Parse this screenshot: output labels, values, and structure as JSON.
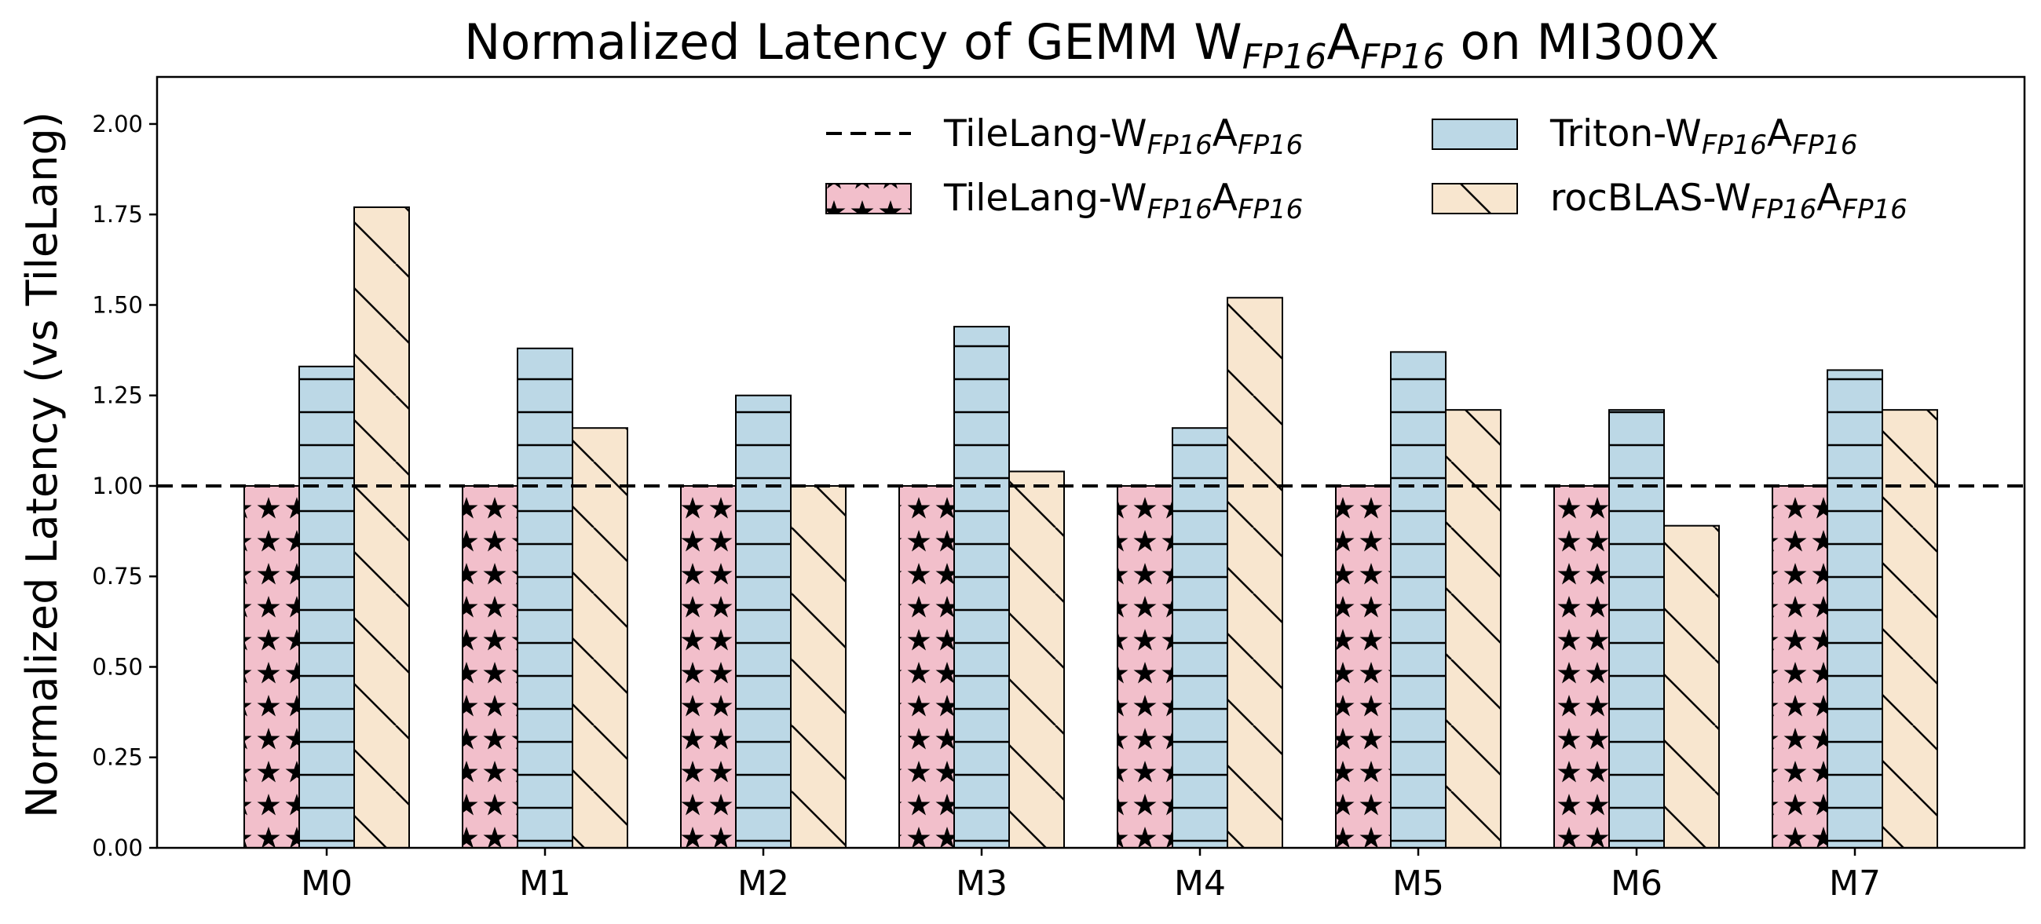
{
  "chart_data": {
    "type": "bar",
    "title": {
      "prefix": "Normalized Latency of GEMM W",
      "sub1": "FP16",
      "mid": "A",
      "sub2": "FP16",
      "suffix": " on MI300X"
    },
    "ylabel": "Normalized Latency (vs TileLang)",
    "xlabel": "",
    "ylim": [
      0,
      2.13
    ],
    "yticks": [
      "0.00",
      "0.25",
      "0.50",
      "0.75",
      "1.00",
      "1.25",
      "1.50",
      "1.75",
      "2.00"
    ],
    "categories": [
      "M0",
      "M1",
      "M2",
      "M3",
      "M4",
      "M5",
      "M6",
      "M7"
    ],
    "reference_line": {
      "value": 1.0,
      "style": "dashed"
    },
    "legend_position": "top-right",
    "series": [
      {
        "name": {
          "base": "TileLang-W",
          "sub1": "FP16",
          "mid": "A",
          "sub2": "FP16"
        },
        "color": "#f2bfcb",
        "hatch": "stars",
        "values": [
          1.0,
          1.0,
          1.0,
          1.0,
          1.0,
          1.0,
          1.0,
          1.0
        ]
      },
      {
        "name": {
          "base": "Triton-W",
          "sub1": "FP16",
          "mid": "A",
          "sub2": "FP16"
        },
        "color": "#bcd8e6",
        "hatch": "horizontal",
        "values": [
          1.33,
          1.38,
          1.25,
          1.44,
          1.16,
          1.37,
          1.21,
          1.32
        ]
      },
      {
        "name": {
          "base": "rocBLAS-W",
          "sub1": "FP16",
          "mid": "A",
          "sub2": "FP16"
        },
        "color": "#f8e6cf",
        "hatch": "diagonal",
        "values": [
          1.77,
          1.16,
          1.0,
          1.04,
          1.52,
          1.21,
          0.89,
          1.21
        ]
      }
    ],
    "reference_legend_name": {
      "base": "TileLang-W",
      "sub1": "FP16",
      "mid": "A",
      "sub2": "FP16"
    },
    "grid": false
  }
}
